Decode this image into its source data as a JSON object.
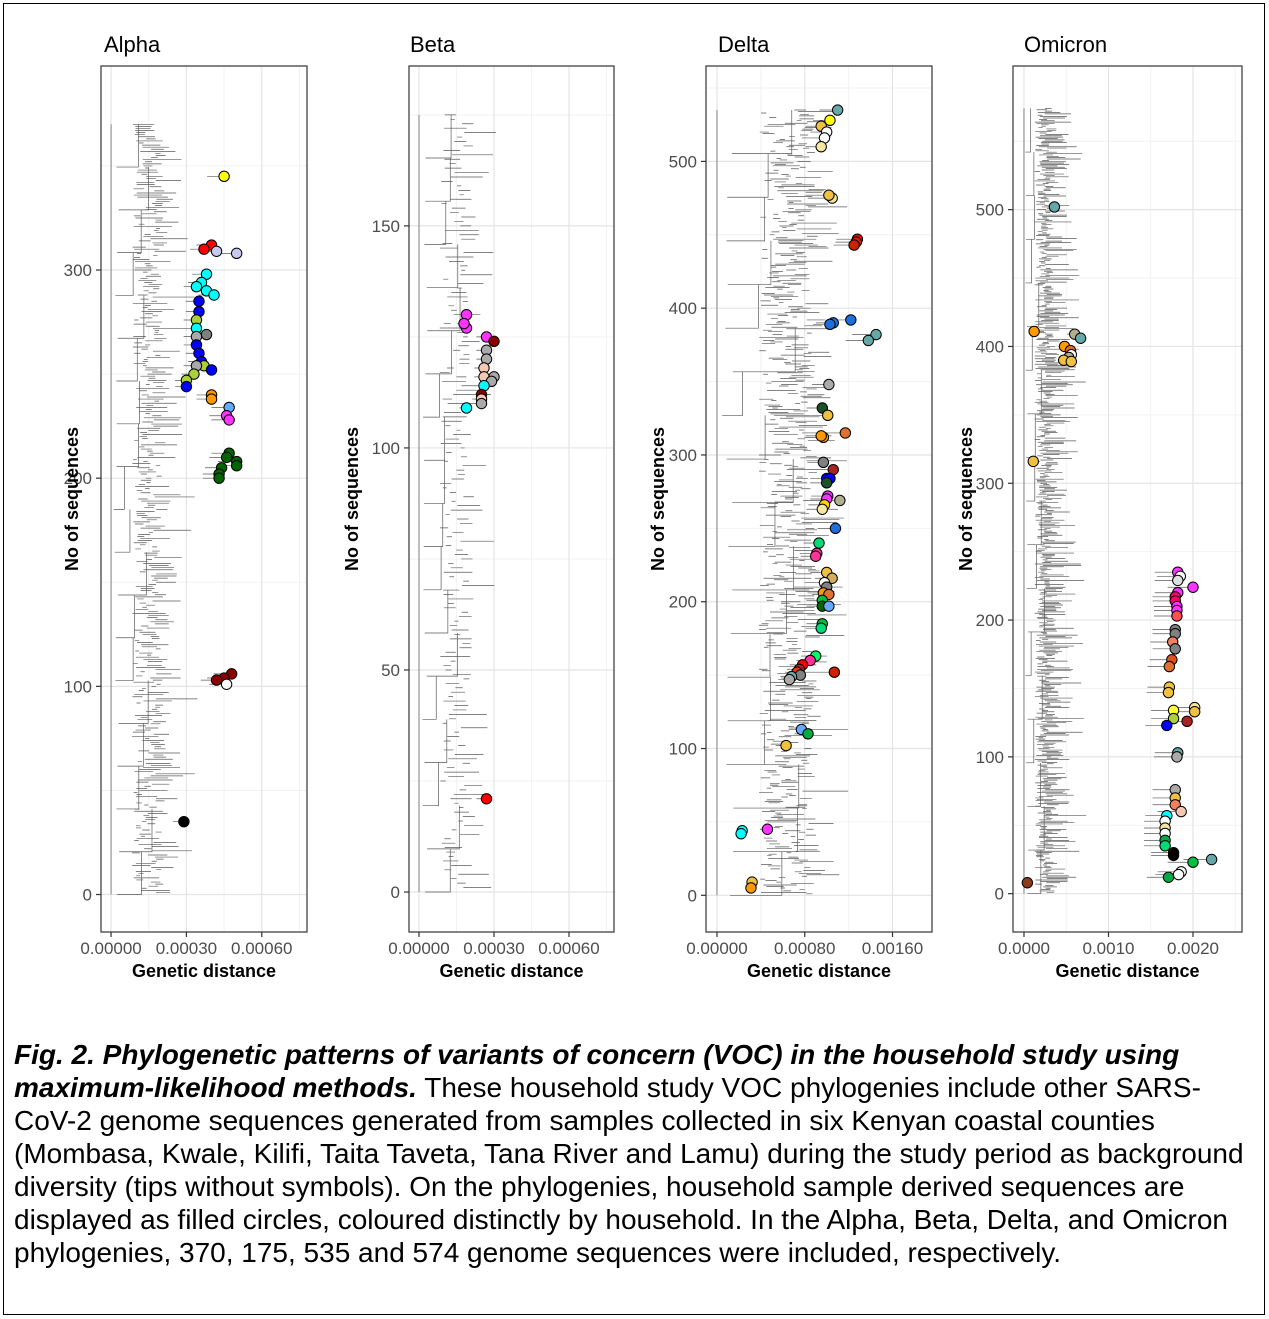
{
  "figure": {
    "caption_title": "Fig. 2. Phylogenetic patterns of variants of concern (VOC) in the household study using maximum-likelihood methods.",
    "caption_body": " These household study VOC phylogenies include other SARS-CoV-2 genome sequences generated from samples collected in six Kenyan coastal counties (Mombasa, Kwale, Kilifi, Taita Taveta, Tana River and Lamu) during the study period as background diversity (tips without symbols). On the phylogenies, household sample derived sequences are displayed as filled circles, coloured distinctly by household. In the Alpha, Beta, Delta, and Omicron phylogenies, 370, 175, 535 and 574 genome sequences were included, respectively."
  },
  "chart_data": [
    {
      "type": "scatter",
      "title": "Alpha",
      "xlabel": "Genetic distance",
      "ylabel": "No of sequences",
      "xlim": [
        -4e-05,
        0.00078
      ],
      "ylim": [
        -18,
        398
      ],
      "xticks": [
        0,
        0.0003,
        0.0006
      ],
      "xtick_labels": [
        "0.00000",
        "0.00030",
        "0.00060"
      ],
      "yticks": [
        0,
        100,
        200,
        300
      ],
      "n_sequences": 370,
      "tips": [
        {
          "x": 0.00045,
          "y": 345,
          "color": "#ffff00"
        },
        {
          "x": 0.0004,
          "y": 312,
          "color": "#ff0000"
        },
        {
          "x": 0.00037,
          "y": 310,
          "color": "#ff0000"
        },
        {
          "x": 0.00042,
          "y": 309,
          "color": "#c8c8f0"
        },
        {
          "x": 0.0005,
          "y": 308,
          "color": "#c8c8f0"
        },
        {
          "x": 0.00038,
          "y": 298,
          "color": "#00ffff"
        },
        {
          "x": 0.00036,
          "y": 294,
          "color": "#00ffff"
        },
        {
          "x": 0.00034,
          "y": 292,
          "color": "#00ffff"
        },
        {
          "x": 0.00038,
          "y": 290,
          "color": "#00ffff"
        },
        {
          "x": 0.00041,
          "y": 288,
          "color": "#00ffff"
        },
        {
          "x": 0.00035,
          "y": 285,
          "color": "#0000ff"
        },
        {
          "x": 0.00035,
          "y": 280,
          "color": "#0000ff"
        },
        {
          "x": 0.00034,
          "y": 276,
          "color": "#aad03c"
        },
        {
          "x": 0.00034,
          "y": 272,
          "color": "#00ffff"
        },
        {
          "x": 0.00034,
          "y": 268,
          "color": "#aaaaaa"
        },
        {
          "x": 0.00038,
          "y": 269,
          "color": "#808080"
        },
        {
          "x": 0.00034,
          "y": 264,
          "color": "#0000ff"
        },
        {
          "x": 0.00035,
          "y": 260,
          "color": "#0000ff"
        },
        {
          "x": 0.00036,
          "y": 256,
          "color": "#0000ff"
        },
        {
          "x": 0.00037,
          "y": 254,
          "color": "#aad03c"
        },
        {
          "x": 0.00034,
          "y": 254,
          "color": "#aaaaaa"
        },
        {
          "x": 0.0004,
          "y": 252,
          "color": "#0000ff"
        },
        {
          "x": 0.00033,
          "y": 250,
          "color": "#aad03c"
        },
        {
          "x": 0.0003,
          "y": 247,
          "color": "#aad03c"
        },
        {
          "x": 0.0003,
          "y": 244,
          "color": "#0000ff"
        },
        {
          "x": 0.0004,
          "y": 240,
          "color": "#ff9900"
        },
        {
          "x": 0.0004,
          "y": 238,
          "color": "#ff9900"
        },
        {
          "x": 0.00047,
          "y": 234,
          "color": "#66aaff"
        },
        {
          "x": 0.00046,
          "y": 230,
          "color": "#ff33ff"
        },
        {
          "x": 0.00047,
          "y": 228,
          "color": "#ff33ff"
        },
        {
          "x": 0.00047,
          "y": 212,
          "color": "#006400"
        },
        {
          "x": 0.00046,
          "y": 210,
          "color": "#006400"
        },
        {
          "x": 0.0005,
          "y": 208,
          "color": "#006400"
        },
        {
          "x": 0.0005,
          "y": 206,
          "color": "#006400"
        },
        {
          "x": 0.00044,
          "y": 205,
          "color": "#006400"
        },
        {
          "x": 0.00043,
          "y": 202,
          "color": "#006400"
        },
        {
          "x": 0.00043,
          "y": 200,
          "color": "#006400"
        },
        {
          "x": 0.00048,
          "y": 106,
          "color": "#8b0000"
        },
        {
          "x": 0.00045,
          "y": 104,
          "color": "#8b0000"
        },
        {
          "x": 0.00042,
          "y": 103,
          "color": "#8b0000"
        },
        {
          "x": 0.00046,
          "y": 101,
          "color": "#ffffff"
        },
        {
          "x": 0.00029,
          "y": 35,
          "color": "#000000"
        }
      ]
    },
    {
      "type": "scatter",
      "title": "Beta",
      "xlabel": "Genetic distance",
      "ylabel": "No of sequences",
      "xlim": [
        -4e-05,
        0.00078
      ],
      "ylim": [
        -9,
        186
      ],
      "xticks": [
        0,
        0.0003,
        0.0006
      ],
      "xtick_labels": [
        "0.00000",
        "0.00030",
        "0.00060"
      ],
      "yticks": [
        0,
        50,
        100,
        150
      ],
      "n_sequences": 175,
      "tips": [
        {
          "x": 0.00019,
          "y": 130,
          "color": "#ff33ff"
        },
        {
          "x": 0.00019,
          "y": 127,
          "color": "#ff33ff"
        },
        {
          "x": 0.00018,
          "y": 128,
          "color": "#ff33ff"
        },
        {
          "x": 0.00027,
          "y": 125,
          "color": "#ff33ff"
        },
        {
          "x": 0.0003,
          "y": 124,
          "color": "#8b0000"
        },
        {
          "x": 0.00027,
          "y": 122,
          "color": "#aaaaaa"
        },
        {
          "x": 0.00027,
          "y": 120,
          "color": "#aaaaaa"
        },
        {
          "x": 0.00026,
          "y": 118,
          "color": "#f5c8b4"
        },
        {
          "x": 0.00026,
          "y": 116,
          "color": "#f5c8b4"
        },
        {
          "x": 0.0003,
          "y": 116,
          "color": "#aaaaaa"
        },
        {
          "x": 0.00029,
          "y": 115,
          "color": "#aaaaaa"
        },
        {
          "x": 0.00026,
          "y": 114,
          "color": "#00ffff"
        },
        {
          "x": 0.00025,
          "y": 112,
          "color": "#8b0000"
        },
        {
          "x": 0.00025,
          "y": 111,
          "color": "#f5c8b4"
        },
        {
          "x": 0.00025,
          "y": 110,
          "color": "#aaaaaa"
        },
        {
          "x": 0.00019,
          "y": 109,
          "color": "#00ffff"
        },
        {
          "x": 0.00027,
          "y": 21,
          "color": "#ff0000"
        }
      ]
    },
    {
      "type": "scatter",
      "title": "Delta",
      "xlabel": "Genetic distance",
      "ylabel": "No of sequences",
      "xlim": [
        -0.0001,
        0.00196
      ],
      "ylim": [
        -25,
        565
      ],
      "xticks": [
        0,
        0.0008,
        0.0016
      ],
      "xtick_labels": [
        "0.00000",
        "0.00080",
        "0.00160"
      ],
      "yticks": [
        0,
        100,
        200,
        300,
        400,
        500
      ],
      "n_sequences": 535,
      "tips": [
        {
          "x": 0.0011,
          "y": 535,
          "color": "#66a8a8"
        },
        {
          "x": 0.00103,
          "y": 528,
          "color": "#ffff00"
        },
        {
          "x": 0.00095,
          "y": 524,
          "color": "#f0c040"
        },
        {
          "x": 0.001,
          "y": 520,
          "color": "#ffffff"
        },
        {
          "x": 0.00098,
          "y": 516,
          "color": "#ffffff"
        },
        {
          "x": 0.00095,
          "y": 510,
          "color": "#f5e6a0"
        },
        {
          "x": 0.00105,
          "y": 475,
          "color": "#f5e6a0"
        },
        {
          "x": 0.00102,
          "y": 477,
          "color": "#f0c040"
        },
        {
          "x": 0.00128,
          "y": 447,
          "color": "#ff0000"
        },
        {
          "x": 0.00127,
          "y": 445,
          "color": "#cc2200"
        },
        {
          "x": 0.00125,
          "y": 443,
          "color": "#cc2200"
        },
        {
          "x": 0.00106,
          "y": 390,
          "color": "#1e6fdc"
        },
        {
          "x": 0.00103,
          "y": 389,
          "color": "#1e6fdc"
        },
        {
          "x": 0.00122,
          "y": 392,
          "color": "#1e6fdc"
        },
        {
          "x": 0.00145,
          "y": 382,
          "color": "#66a8a8"
        },
        {
          "x": 0.00138,
          "y": 378,
          "color": "#66a8a8"
        },
        {
          "x": 0.00102,
          "y": 348,
          "color": "#aaaaaa"
        },
        {
          "x": 0.00096,
          "y": 332,
          "color": "#1e5028"
        },
        {
          "x": 0.00101,
          "y": 327,
          "color": "#f0c040"
        },
        {
          "x": 0.00097,
          "y": 312,
          "color": "#ff9900"
        },
        {
          "x": 0.00095,
          "y": 313,
          "color": "#ff9900"
        },
        {
          "x": 0.00117,
          "y": 315,
          "color": "#e07030"
        },
        {
          "x": 0.00097,
          "y": 295,
          "color": "#808080"
        },
        {
          "x": 0.00106,
          "y": 290,
          "color": "#aa2222"
        },
        {
          "x": 0.001,
          "y": 284,
          "color": "#0000ff"
        },
        {
          "x": 0.00103,
          "y": 284,
          "color": "#0000ff"
        },
        {
          "x": 0.001,
          "y": 281,
          "color": "#1e5028"
        },
        {
          "x": 0.00101,
          "y": 272,
          "color": "#ff33ff"
        },
        {
          "x": 0.001,
          "y": 270,
          "color": "#ff33ff"
        },
        {
          "x": 0.00112,
          "y": 269,
          "color": "#b0b090"
        },
        {
          "x": 0.00098,
          "y": 266,
          "color": "#ffd700"
        },
        {
          "x": 0.00096,
          "y": 263,
          "color": "#f5e6a0"
        },
        {
          "x": 0.00108,
          "y": 250,
          "color": "#1e6fdc"
        },
        {
          "x": 0.00093,
          "y": 240,
          "color": "#00dd77"
        },
        {
          "x": 0.00091,
          "y": 233,
          "color": "#ff3399"
        },
        {
          "x": 0.0009,
          "y": 231,
          "color": "#ff3399"
        },
        {
          "x": 0.001,
          "y": 220,
          "color": "#f0c040"
        },
        {
          "x": 0.00105,
          "y": 216,
          "color": "#d0b060"
        },
        {
          "x": 0.00098,
          "y": 213,
          "color": "#ffffff"
        },
        {
          "x": 0.001,
          "y": 210,
          "color": "#808080"
        },
        {
          "x": 0.00097,
          "y": 206,
          "color": "#ff9900"
        },
        {
          "x": 0.00102,
          "y": 205,
          "color": "#e07030"
        },
        {
          "x": 0.00096,
          "y": 201,
          "color": "#00c040"
        },
        {
          "x": 0.00096,
          "y": 197,
          "color": "#006400"
        },
        {
          "x": 0.00102,
          "y": 197,
          "color": "#66aaff"
        },
        {
          "x": 0.00096,
          "y": 185,
          "color": "#00c040"
        },
        {
          "x": 0.00095,
          "y": 182,
          "color": "#00dd77"
        },
        {
          "x": 0.0009,
          "y": 163,
          "color": "#00ff66"
        },
        {
          "x": 0.00085,
          "y": 160,
          "color": "#ff3399"
        },
        {
          "x": 0.00078,
          "y": 157,
          "color": "#ff0000"
        },
        {
          "x": 0.00075,
          "y": 154,
          "color": "#aa2222"
        },
        {
          "x": 0.00073,
          "y": 152,
          "color": "#ff3300"
        },
        {
          "x": 0.00076,
          "y": 150,
          "color": "#808080"
        },
        {
          "x": 0.00068,
          "y": 149,
          "color": "#66a8a8"
        },
        {
          "x": 0.00066,
          "y": 147,
          "color": "#aaaaaa"
        },
        {
          "x": 0.00107,
          "y": 152,
          "color": "#cc2200"
        },
        {
          "x": 0.00077,
          "y": 113,
          "color": "#66aaff"
        },
        {
          "x": 0.00083,
          "y": 110,
          "color": "#00aa44"
        },
        {
          "x": 0.00063,
          "y": 102,
          "color": "#f0c040"
        },
        {
          "x": 0.00046,
          "y": 45,
          "color": "#ff33ff"
        },
        {
          "x": 0.00023,
          "y": 44,
          "color": "#00ffff"
        },
        {
          "x": 0.00022,
          "y": 42,
          "color": "#00ffff"
        },
        {
          "x": 0.00032,
          "y": 9,
          "color": "#f0c040"
        },
        {
          "x": 0.00031,
          "y": 5,
          "color": "#ff9900"
        }
      ]
    },
    {
      "type": "scatter",
      "title": "Omicron",
      "xlabel": "Genetic distance",
      "ylabel": "No of sequences",
      "xlim": [
        -0.00013,
        0.00258
      ],
      "ylim": [
        -28,
        605
      ],
      "xticks": [
        0,
        0.001,
        0.002
      ],
      "xtick_labels": [
        "0.0000",
        "0.0010",
        "0.0020"
      ],
      "yticks": [
        0,
        100,
        200,
        300,
        400,
        500
      ],
      "n_sequences": 574,
      "tips": [
        {
          "x": 0.00036,
          "y": 502,
          "color": "#66a8a8"
        },
        {
          "x": 0.00012,
          "y": 411,
          "color": "#ff9900"
        },
        {
          "x": 0.0006,
          "y": 409,
          "color": "#b0b090"
        },
        {
          "x": 0.00067,
          "y": 406,
          "color": "#66a8a8"
        },
        {
          "x": 0.00048,
          "y": 400,
          "color": "#ff9900"
        },
        {
          "x": 0.00055,
          "y": 397,
          "color": "#e07030"
        },
        {
          "x": 0.00056,
          "y": 394,
          "color": "#ffffff"
        },
        {
          "x": 0.00053,
          "y": 392,
          "color": "#b0b090"
        },
        {
          "x": 0.00047,
          "y": 390,
          "color": "#f0c040"
        },
        {
          "x": 0.00056,
          "y": 389,
          "color": "#f0c040"
        },
        {
          "x": 0.00011,
          "y": 316,
          "color": "#f0c040"
        },
        {
          "x": 0.00182,
          "y": 235,
          "color": "#ff33ff"
        },
        {
          "x": 0.00185,
          "y": 232,
          "color": "#ffffff"
        },
        {
          "x": 0.00182,
          "y": 229,
          "color": "#e0e0e0"
        },
        {
          "x": 0.002,
          "y": 224,
          "color": "#ff33ff"
        },
        {
          "x": 0.00182,
          "y": 220,
          "color": "#ff33ff"
        },
        {
          "x": 0.00179,
          "y": 217,
          "color": "#ff0066"
        },
        {
          "x": 0.00179,
          "y": 214,
          "color": "#ff0066"
        },
        {
          "x": 0.00181,
          "y": 210,
          "color": "#ff33ff"
        },
        {
          "x": 0.00181,
          "y": 207,
          "color": "#ff33ff"
        },
        {
          "x": 0.00181,
          "y": 203,
          "color": "#ff5050"
        },
        {
          "x": 0.00179,
          "y": 193,
          "color": "#808080"
        },
        {
          "x": 0.00179,
          "y": 190,
          "color": "#808080"
        },
        {
          "x": 0.00176,
          "y": 184,
          "color": "#f08060"
        },
        {
          "x": 0.00179,
          "y": 179,
          "color": "#808080"
        },
        {
          "x": 0.00175,
          "y": 171,
          "color": "#e05020"
        },
        {
          "x": 0.00172,
          "y": 166,
          "color": "#e07030"
        },
        {
          "x": 0.00172,
          "y": 151,
          "color": "#f0c040"
        },
        {
          "x": 0.00171,
          "y": 147,
          "color": "#f0c040"
        },
        {
          "x": 0.00177,
          "y": 134,
          "color": "#ffff33"
        },
        {
          "x": 0.00202,
          "y": 136,
          "color": "#f5e6a0"
        },
        {
          "x": 0.00202,
          "y": 133,
          "color": "#f0c040"
        },
        {
          "x": 0.00193,
          "y": 126,
          "color": "#aa2222"
        },
        {
          "x": 0.00177,
          "y": 128,
          "color": "#aad03c"
        },
        {
          "x": 0.00169,
          "y": 123,
          "color": "#0000ff"
        },
        {
          "x": 0.00182,
          "y": 103,
          "color": "#66a8a8"
        },
        {
          "x": 0.00181,
          "y": 100,
          "color": "#aaaaaa"
        },
        {
          "x": 0.00179,
          "y": 76,
          "color": "#aaaaaa"
        },
        {
          "x": 0.00179,
          "y": 70,
          "color": "#f0c040"
        },
        {
          "x": 0.00179,
          "y": 65,
          "color": "#f08060"
        },
        {
          "x": 0.00186,
          "y": 60,
          "color": "#f5c8b4"
        },
        {
          "x": 0.00169,
          "y": 57,
          "color": "#00ffff"
        },
        {
          "x": 0.00167,
          "y": 53,
          "color": "#ffffff"
        },
        {
          "x": 0.00167,
          "y": 48,
          "color": "#f5e6a0"
        },
        {
          "x": 0.00167,
          "y": 44,
          "color": "#ffffff"
        },
        {
          "x": 0.00167,
          "y": 39,
          "color": "#00aa44"
        },
        {
          "x": 0.00167,
          "y": 35,
          "color": "#00dd77"
        },
        {
          "x": 0.00177,
          "y": 30,
          "color": "#000000"
        },
        {
          "x": 0.00177,
          "y": 28,
          "color": "#000000"
        },
        {
          "x": 0.00222,
          "y": 25,
          "color": "#66a8a8"
        },
        {
          "x": 0.002,
          "y": 23,
          "color": "#00c040"
        },
        {
          "x": 0.00186,
          "y": 16,
          "color": "#ffffff"
        },
        {
          "x": 0.00183,
          "y": 14,
          "color": "#ffffff"
        },
        {
          "x": 0.00171,
          "y": 12,
          "color": "#00aa44"
        },
        {
          "x": 4e-05,
          "y": 8,
          "color": "#8b3a1a"
        }
      ]
    }
  ]
}
